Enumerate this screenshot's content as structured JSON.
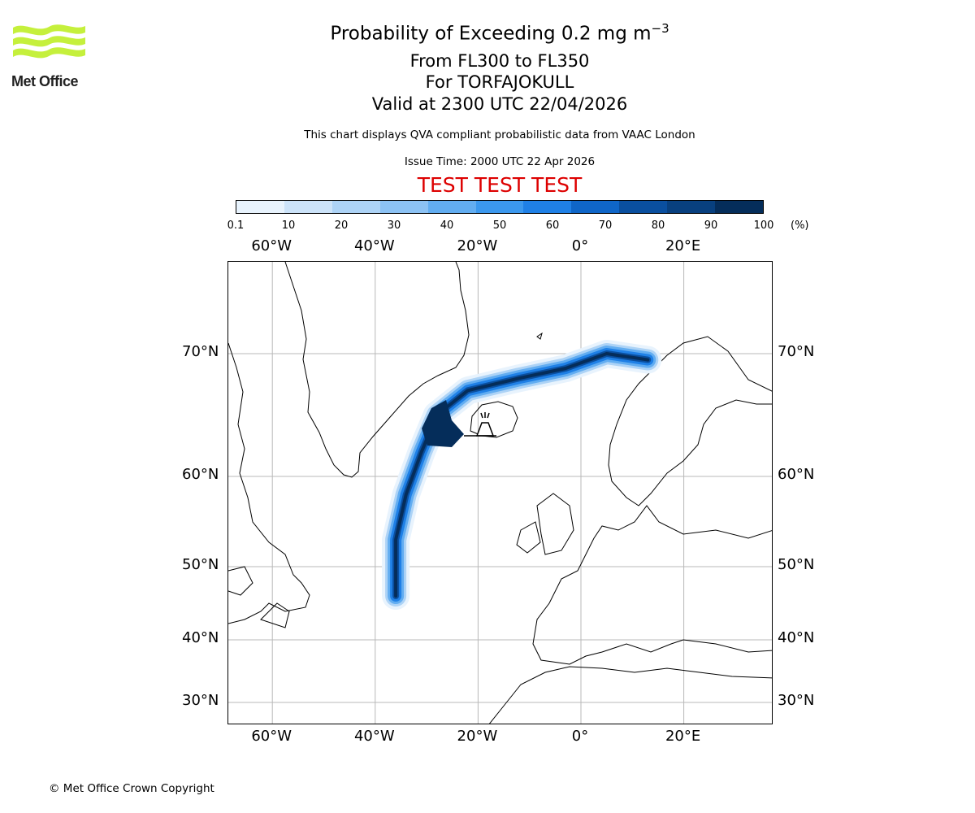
{
  "logo": {
    "text": "Met Office"
  },
  "title": {
    "line1_prefix": "Probability of Exceeding 0.2 mg m",
    "line1_sup": "−3",
    "line2": "From FL300 to FL350",
    "line3": "For TORFAJOKULL",
    "line4": "Valid at 2300 UTC 22/04/2026"
  },
  "subtitle": "This chart displays QVA compliant probabilistic data from VAAC London",
  "issue_time": "Issue Time: 2000 UTC 22 Apr 2026",
  "test_banner": "TEST TEST TEST",
  "colorbar": {
    "ticks": [
      "0.1",
      "10",
      "20",
      "30",
      "40",
      "50",
      "60",
      "70",
      "80",
      "90",
      "100"
    ],
    "unit": "(%)",
    "colors": [
      "#e8f3fd",
      "#cce3f9",
      "#add3f6",
      "#8cc2f4",
      "#62adf1",
      "#3b98ee",
      "#1f80e6",
      "#0f66c8",
      "#0a4f9f",
      "#08407f",
      "#052d5a"
    ]
  },
  "map": {
    "lon_labels": [
      "60°W",
      "40°W",
      "20°W",
      "0°",
      "20°E"
    ],
    "lat_labels": [
      "70°N",
      "60°N",
      "50°N",
      "40°N",
      "30°N"
    ],
    "volcano": "TORFAJOKULL",
    "plume_track": [
      {
        "lon": 13,
        "lat": 69.5
      },
      {
        "lon": 5,
        "lat": 70.0
      },
      {
        "lon": -3,
        "lat": 68.8
      },
      {
        "lon": -12,
        "lat": 68.0
      },
      {
        "lon": -22,
        "lat": 67.0
      },
      {
        "lon": -28,
        "lat": 65.0
      },
      {
        "lon": -31,
        "lat": 62.0
      },
      {
        "lon": -34,
        "lat": 58.0
      },
      {
        "lon": -36,
        "lat": 53.0
      },
      {
        "lon": -36,
        "lat": 48.0
      },
      {
        "lon": -36,
        "lat": 46.0
      }
    ]
  },
  "copyright": "© Met Office Crown Copyright"
}
